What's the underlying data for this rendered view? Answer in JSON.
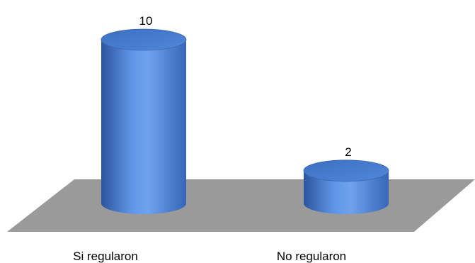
{
  "chart_data": {
    "type": "bar",
    "categories": [
      "Si regularon",
      "No regularon"
    ],
    "values": [
      10,
      2
    ],
    "data_labels": [
      "10",
      "2"
    ],
    "ylim": [
      0,
      10
    ],
    "grid": false,
    "legend": "none",
    "colors": {
      "bar": "#4a7fd0",
      "bar_highlight": "#6fa3ee",
      "bar_shadow": "#2b559c",
      "floor": "#9a9a9a"
    }
  }
}
